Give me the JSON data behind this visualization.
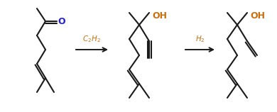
{
  "figsize": [
    3.9,
    1.58
  ],
  "dpi": 100,
  "bg": "#ffffff",
  "lc": "#1a1a1a",
  "rc": "#c87010",
  "oc_blue": "#2222cc",
  "lw": 1.5,
  "arrow1": "C$_2$H$_2$",
  "arrow2": "H$_2$",
  "O_label": "O",
  "OH_label": "OH"
}
